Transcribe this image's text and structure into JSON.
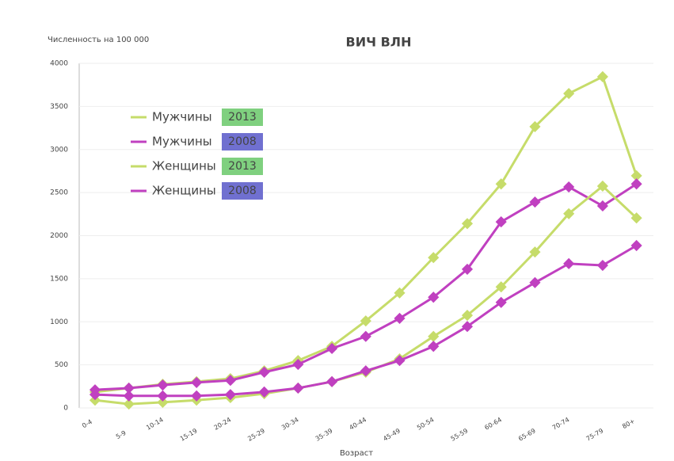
{
  "chart_data": {
    "type": "line",
    "title": "ВИЧ ВЛН",
    "y_label": "Численность на 100 000",
    "x_label": "Возраст",
    "categories": [
      "0-4",
      "5-9",
      "10-14",
      "15-19",
      "20-24",
      "25-29",
      "30-34",
      "35-39",
      "40-44",
      "45-49",
      "50-54",
      "55-59",
      "60-64",
      "65-69",
      "70-74",
      "75-79",
      "80+"
    ],
    "ylim": [
      0,
      4000
    ],
    "yticks": [
      0,
      500,
      1000,
      1500,
      2000,
      2500,
      3000,
      3500,
      4000
    ],
    "grid": true,
    "legend": "upper-left",
    "series": [
      {
        "name": "Мужчины",
        "tag": "2013",
        "color": "#c6dc6a",
        "tag_color": "#7fd07f",
        "values": [
          185,
          230,
          275,
          305,
          340,
          430,
          550,
          715,
          1010,
          1335,
          1745,
          2140,
          2600,
          3265,
          3650,
          3845,
          2695
        ]
      },
      {
        "name": "Мужчины",
        "tag": "2008",
        "color": "#c040c0",
        "tag_color": "#7070d0",
        "values": [
          210,
          230,
          265,
          295,
          320,
          415,
          505,
          690,
          830,
          1040,
          1285,
          1610,
          2160,
          2390,
          2565,
          2345,
          2600
        ]
      },
      {
        "name": "Женщины",
        "tag": "2013",
        "color": "#c6dc6a",
        "tag_color": "#7fd07f",
        "values": [
          90,
          45,
          65,
          90,
          120,
          165,
          230,
          305,
          415,
          570,
          830,
          1075,
          1405,
          1810,
          2255,
          2575,
          2205
        ]
      },
      {
        "name": "Женщины",
        "tag": "2008",
        "color": "#c040c0",
        "tag_color": "#7070d0",
        "values": [
          155,
          140,
          140,
          140,
          155,
          185,
          230,
          305,
          430,
          550,
          715,
          945,
          1225,
          1455,
          1675,
          1655,
          1885
        ]
      }
    ]
  }
}
